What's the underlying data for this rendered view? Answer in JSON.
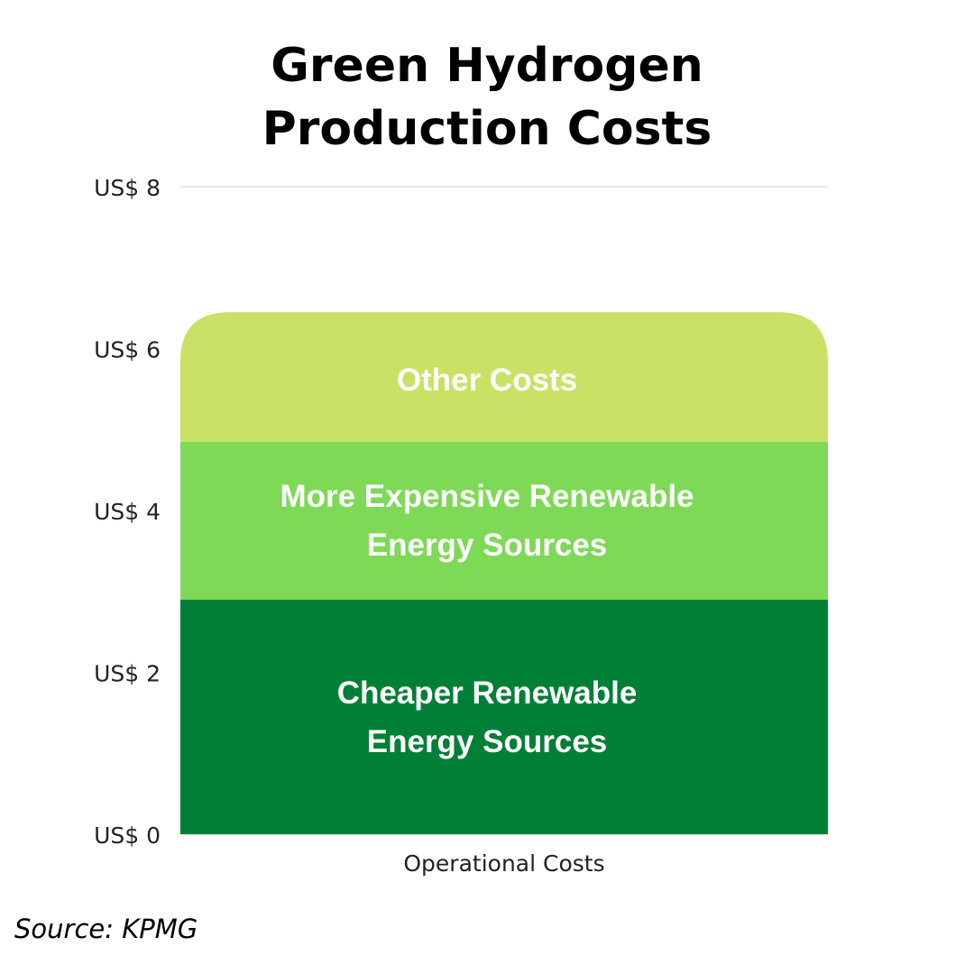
{
  "title_lines": [
    "Green Hydrogen",
    "Production Costs"
  ],
  "source": "Source: KPMG",
  "colors": {
    "grid": "#d0d0d0",
    "cheaper": "#007f36",
    "more_expensive": "#7ed957",
    "other": "#c9e265",
    "segment_text": "#ffffff"
  },
  "chart_data": {
    "type": "bar",
    "stacked": true,
    "categories": [
      "Operational Costs"
    ],
    "ylim": [
      0,
      8
    ],
    "grid": true,
    "yticks": [
      {
        "value": 0,
        "label": "US$ 0"
      },
      {
        "value": 2,
        "label": "US$ 2"
      },
      {
        "value": 4,
        "label": "US$ 4"
      },
      {
        "value": 6,
        "label": "US$ 6"
      },
      {
        "value": 8,
        "label": "US$ 8"
      }
    ],
    "series": [
      {
        "name": "Cheaper Renewable Energy Sources",
        "label_lines": [
          "Cheaper Renewable",
          "Energy Sources"
        ],
        "values": [
          2.9
        ],
        "color": "#007f36"
      },
      {
        "name": "More Expensive Renewable Energy Sources",
        "label_lines": [
          "More Expensive Renewable",
          "Energy Sources"
        ],
        "values": [
          1.95
        ],
        "color": "#7ed957"
      },
      {
        "name": "Other Costs",
        "label_lines": [
          "Other Costs"
        ],
        "values": [
          1.6
        ],
        "color": "#c9e265"
      }
    ]
  }
}
